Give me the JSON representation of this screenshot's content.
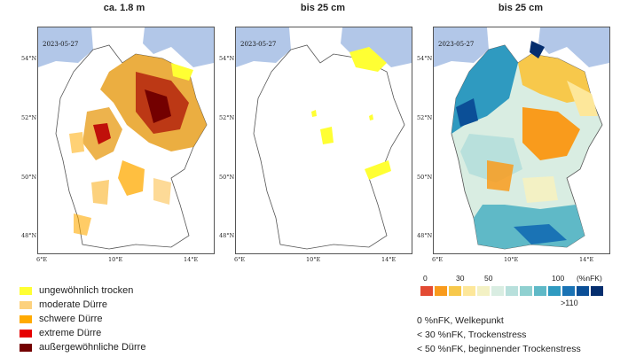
{
  "panels": [
    {
      "title": "ca. 1.8 m",
      "date": "2023-05-27"
    },
    {
      "title": "bis 25 cm",
      "date": "2023-05-27"
    },
    {
      "title": "bis 25 cm",
      "date": "2023-05-27"
    }
  ],
  "axes": {
    "lat": [
      "54°N",
      "52°N",
      "50°N",
      "48°N"
    ],
    "lon": [
      "6°E",
      "10°E",
      "14°E"
    ]
  },
  "drought_legend": [
    {
      "label": "ungewöhnlich trocken",
      "color": "#ffff33"
    },
    {
      "label": "moderate Dürre",
      "color": "#fcd17d"
    },
    {
      "label": "schwere Dürre",
      "color": "#ffaa00"
    },
    {
      "label": "extreme Dürre",
      "color": "#e60000"
    },
    {
      "label": "außergewöhnliche Dürre",
      "color": "#730000"
    }
  ],
  "nfk_scale": {
    "labels": [
      "0",
      "30",
      "50",
      "100"
    ],
    "unit": "(%nFK)",
    "overflow_label": ">110",
    "colors": [
      "#e34a33",
      "#f99b1c",
      "#f7c84b",
      "#fde79a",
      "#f3f1c4",
      "#d9ede2",
      "#b8e0dc",
      "#8fd0d0",
      "#5fb9c7",
      "#2f9ac0",
      "#1a73b5",
      "#0b4f97",
      "#052e6e"
    ]
  },
  "notes": [
    "0 %nFK, Welkepunkt",
    "< 30 %nFK, Trockenstress",
    "< 50 %nFK, beginnender Trockenstress"
  ]
}
